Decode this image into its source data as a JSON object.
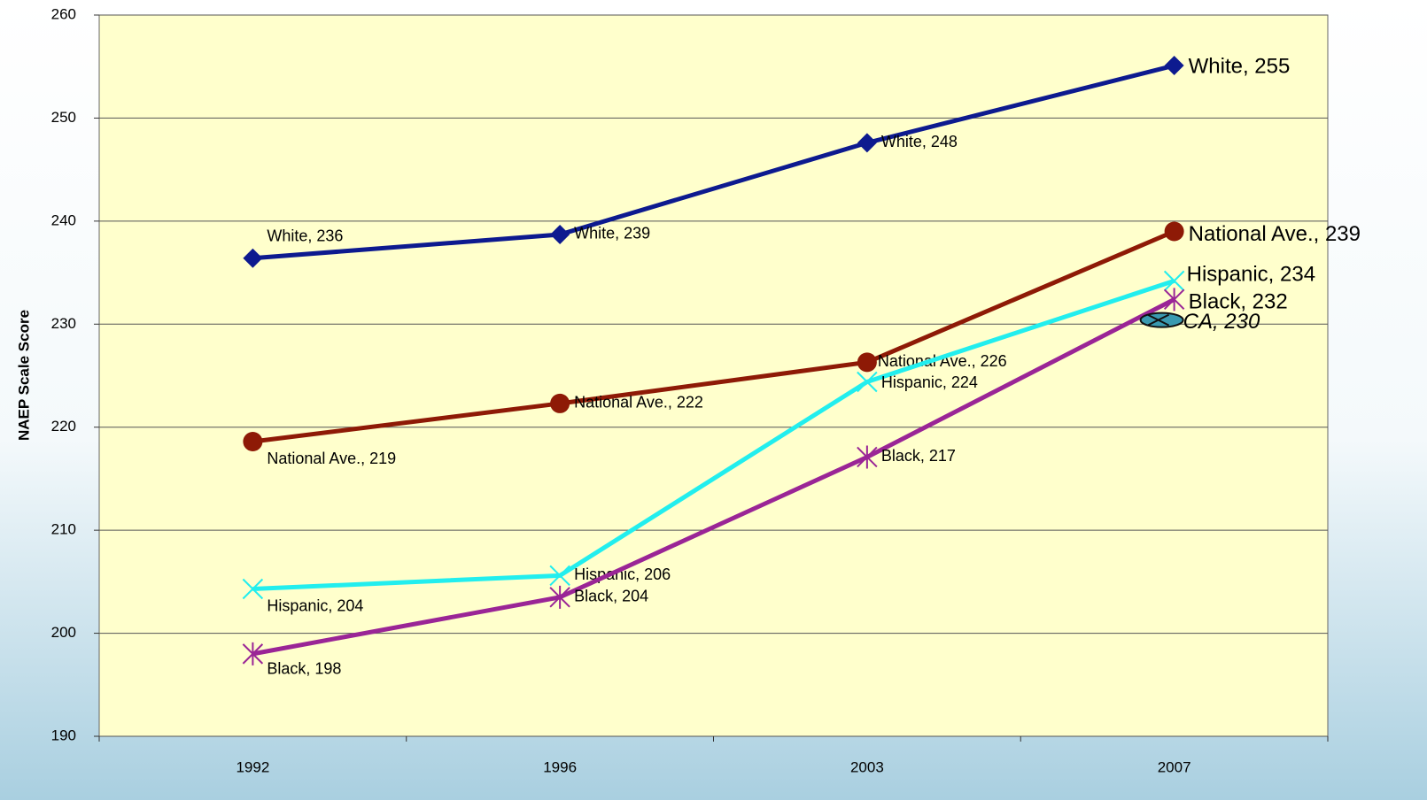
{
  "chart_data": {
    "type": "line",
    "y_label": "NAEP Scale Score",
    "categories": [
      "1992",
      "1996",
      "2003",
      "2007"
    ],
    "ylim": [
      190,
      260
    ],
    "yticks": [
      190,
      200,
      210,
      220,
      230,
      240,
      250,
      260
    ],
    "grid": true,
    "series": [
      {
        "name": "White",
        "color": "#0d1a8f",
        "marker": "diamond",
        "values": [
          236.4,
          238.7,
          247.6,
          255.1
        ],
        "value_labels": [
          "White, 236",
          "White, 239",
          "White, 248",
          "White, 255"
        ]
      },
      {
        "name": "National Ave.",
        "color": "#8e1a06",
        "marker": "circle",
        "values": [
          218.6,
          222.3,
          226.3,
          239.0
        ],
        "value_labels": [
          "National Ave., 219",
          "National Ave., 222",
          "National Ave., 226",
          "National Ave., 239"
        ]
      },
      {
        "name": "Hispanic",
        "color": "#22eeee",
        "marker": "x",
        "values": [
          204.3,
          205.6,
          224.4,
          234.2
        ],
        "value_labels": [
          "Hispanic, 204",
          "Hispanic, 206",
          "Hispanic, 224",
          "Hispanic, 234"
        ]
      },
      {
        "name": "Black",
        "color": "#9a2596",
        "marker": "star",
        "values": [
          198.0,
          203.5,
          217.1,
          232.4
        ],
        "value_labels": [
          "Black, 198",
          "Black, 204",
          "Black, 217",
          "Black, 232"
        ]
      },
      {
        "name": "CA",
        "color": "#3a9ab0",
        "marker": "ellipse",
        "values": [
          null,
          null,
          null,
          230.4
        ],
        "value_labels": [
          null,
          null,
          null,
          "CA, 230"
        ]
      }
    ]
  }
}
